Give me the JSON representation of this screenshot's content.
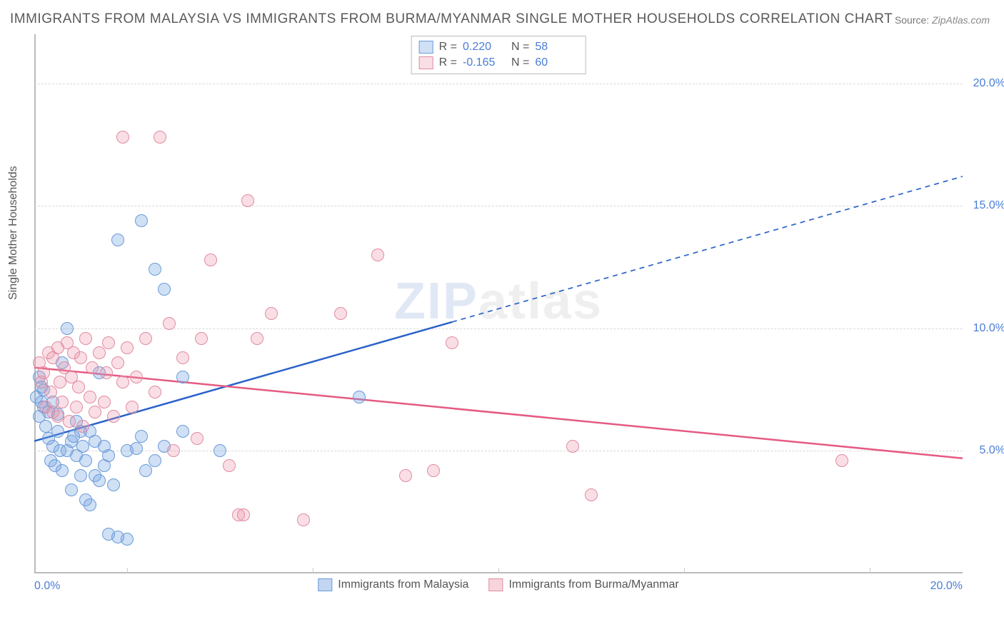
{
  "title": "IMMIGRANTS FROM MALAYSIA VS IMMIGRANTS FROM BURMA/MYANMAR SINGLE MOTHER HOUSEHOLDS CORRELATION CHART",
  "source_label": "Source:",
  "source_value": "ZipAtlas.com",
  "y_axis_label": "Single Mother Households",
  "watermark_a": "ZIP",
  "watermark_b": "atlas",
  "chart": {
    "type": "scatter",
    "xlim": [
      0,
      20
    ],
    "ylim": [
      0,
      22
    ],
    "x_ticks": [
      0,
      20
    ],
    "x_tick_labels": [
      "0.0%",
      "20.0%"
    ],
    "y_ticks": [
      5,
      10,
      15,
      20
    ],
    "y_tick_labels": [
      "5.0%",
      "10.0%",
      "15.0%",
      "20.0%"
    ],
    "x_minor_ticks": [
      2,
      6,
      10,
      14,
      18
    ],
    "background_color": "#ffffff",
    "grid_color": "#d8d8d8",
    "axis_color": "#bbbbbb",
    "tick_label_color": "#4a7dd6",
    "point_radius": 9,
    "series": [
      {
        "name": "Immigrants from Malaysia",
        "fill": "rgba(120,165,225,0.35)",
        "stroke": "#6a9ad8",
        "r_label": "R =",
        "r_value": "0.220",
        "n_label": "N =",
        "n_value": "58",
        "trend": {
          "x1": 0,
          "y1": 5.4,
          "x2": 20,
          "y2": 16.2,
          "solid_until_x": 9,
          "color": "#2b62c9",
          "width": 2.5
        },
        "points": [
          [
            0.05,
            7.2
          ],
          [
            0.1,
            6.4
          ],
          [
            0.1,
            8.0
          ],
          [
            0.15,
            7.0
          ],
          [
            0.15,
            7.6
          ],
          [
            0.2,
            6.8
          ],
          [
            0.2,
            7.5
          ],
          [
            0.25,
            6.0
          ],
          [
            0.3,
            5.5
          ],
          [
            0.3,
            6.6
          ],
          [
            0.35,
            4.6
          ],
          [
            0.4,
            7.0
          ],
          [
            0.4,
            5.2
          ],
          [
            0.45,
            4.4
          ],
          [
            0.5,
            5.8
          ],
          [
            0.5,
            6.5
          ],
          [
            0.55,
            5.0
          ],
          [
            0.6,
            4.2
          ],
          [
            0.6,
            8.6
          ],
          [
            0.7,
            5.0
          ],
          [
            0.7,
            10.0
          ],
          [
            0.8,
            5.4
          ],
          [
            0.8,
            3.4
          ],
          [
            0.85,
            5.6
          ],
          [
            0.9,
            4.8
          ],
          [
            0.9,
            6.2
          ],
          [
            1.0,
            4.0
          ],
          [
            1.0,
            5.8
          ],
          [
            1.05,
            5.2
          ],
          [
            1.1,
            3.0
          ],
          [
            1.1,
            4.6
          ],
          [
            1.2,
            5.8
          ],
          [
            1.2,
            2.8
          ],
          [
            1.3,
            4.0
          ],
          [
            1.3,
            5.4
          ],
          [
            1.4,
            8.2
          ],
          [
            1.4,
            3.8
          ],
          [
            1.5,
            4.4
          ],
          [
            1.5,
            5.2
          ],
          [
            1.6,
            4.8
          ],
          [
            1.6,
            1.6
          ],
          [
            1.7,
            3.6
          ],
          [
            1.8,
            1.5
          ],
          [
            1.8,
            13.6
          ],
          [
            2.0,
            1.4
          ],
          [
            2.0,
            5.0
          ],
          [
            2.2,
            5.1
          ],
          [
            2.3,
            5.6
          ],
          [
            2.3,
            14.4
          ],
          [
            2.4,
            4.2
          ],
          [
            2.6,
            4.6
          ],
          [
            2.6,
            12.4
          ],
          [
            2.8,
            5.2
          ],
          [
            2.8,
            11.6
          ],
          [
            3.2,
            5.8
          ],
          [
            3.2,
            8.0
          ],
          [
            4.0,
            5.0
          ],
          [
            7.0,
            7.2
          ]
        ]
      },
      {
        "name": "Immigrants from Burma/Myanmar",
        "fill": "rgba(235,150,170,0.30)",
        "stroke": "#e28aa0",
        "r_label": "R =",
        "r_value": "-0.165",
        "n_label": "N =",
        "n_value": "60",
        "trend": {
          "x1": 0,
          "y1": 8.4,
          "x2": 20,
          "y2": 4.7,
          "solid_until_x": 20,
          "color": "#e55a82",
          "width": 2.5
        },
        "points": [
          [
            0.1,
            8.6
          ],
          [
            0.15,
            7.8
          ],
          [
            0.2,
            8.2
          ],
          [
            0.25,
            6.8
          ],
          [
            0.3,
            9.0
          ],
          [
            0.35,
            7.4
          ],
          [
            0.4,
            6.6
          ],
          [
            0.4,
            8.8
          ],
          [
            0.5,
            9.2
          ],
          [
            0.5,
            6.4
          ],
          [
            0.55,
            7.8
          ],
          [
            0.6,
            7.0
          ],
          [
            0.65,
            8.4
          ],
          [
            0.7,
            9.4
          ],
          [
            0.75,
            6.2
          ],
          [
            0.8,
            8.0
          ],
          [
            0.85,
            9.0
          ],
          [
            0.9,
            6.8
          ],
          [
            0.95,
            7.6
          ],
          [
            1.0,
            8.8
          ],
          [
            1.05,
            6.0
          ],
          [
            1.1,
            9.6
          ],
          [
            1.2,
            7.2
          ],
          [
            1.25,
            8.4
          ],
          [
            1.3,
            6.6
          ],
          [
            1.4,
            9.0
          ],
          [
            1.5,
            7.0
          ],
          [
            1.55,
            8.2
          ],
          [
            1.6,
            9.4
          ],
          [
            1.7,
            6.4
          ],
          [
            1.8,
            8.6
          ],
          [
            1.9,
            7.8
          ],
          [
            1.9,
            17.8
          ],
          [
            2.0,
            9.2
          ],
          [
            2.1,
            6.8
          ],
          [
            2.2,
            8.0
          ],
          [
            2.4,
            9.6
          ],
          [
            2.6,
            7.4
          ],
          [
            2.7,
            17.8
          ],
          [
            2.9,
            10.2
          ],
          [
            3.0,
            5.0
          ],
          [
            3.2,
            8.8
          ],
          [
            3.5,
            5.5
          ],
          [
            3.6,
            9.6
          ],
          [
            3.8,
            12.8
          ],
          [
            4.2,
            4.4
          ],
          [
            4.4,
            2.4
          ],
          [
            4.5,
            2.4
          ],
          [
            4.6,
            15.2
          ],
          [
            4.8,
            9.6
          ],
          [
            5.1,
            10.6
          ],
          [
            5.8,
            2.2
          ],
          [
            6.6,
            10.6
          ],
          [
            7.4,
            13.0
          ],
          [
            8.0,
            4.0
          ],
          [
            8.6,
            4.2
          ],
          [
            9.0,
            9.4
          ],
          [
            11.6,
            5.2
          ],
          [
            12.0,
            3.2
          ],
          [
            17.4,
            4.6
          ]
        ]
      }
    ]
  },
  "legend_bottom": {
    "items": [
      {
        "label": "Immigrants from Malaysia",
        "fill": "rgba(120,165,225,0.45)",
        "stroke": "#6a9ad8"
      },
      {
        "label": "Immigrants from Burma/Myanmar",
        "fill": "rgba(235,150,170,0.40)",
        "stroke": "#e28aa0"
      }
    ]
  }
}
